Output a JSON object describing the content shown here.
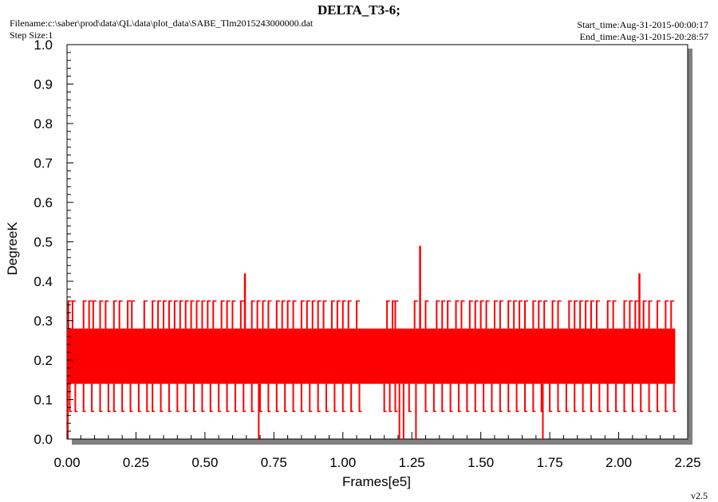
{
  "header": {
    "title": "DELTA_T3-6;",
    "filename": "Filename:c:\\saber\\prod\\data\\QL\\data\\plot_data\\SABE_Tlm2015243000000.dat",
    "step_size": "Step Size:1",
    "start_time": "Start_time:Aug-31-2015-00:00:17",
    "end_time": "End_time:Aug-31-2015-20:28:57"
  },
  "footer": {
    "version": "v2.5"
  },
  "colors": {
    "series": "#ff0000",
    "axis": "#000000",
    "shadow": "#808080"
  },
  "chart_data": {
    "type": "line",
    "title": "DELTA_T3-6;",
    "xlabel": "Frames[e5]",
    "ylabel": "DegreeK",
    "xlim": [
      0.0,
      2.25
    ],
    "ylim": [
      0.0,
      1.0
    ],
    "x_ticks": [
      "0.00",
      "0.25",
      "0.50",
      "0.75",
      "1.00",
      "1.25",
      "1.50",
      "1.75",
      "2.00",
      "2.25"
    ],
    "y_ticks": [
      "0.0",
      "0.1",
      "0.2",
      "0.3",
      "0.4",
      "0.5",
      "0.6",
      "0.7",
      "0.8",
      "0.9",
      "1.0"
    ],
    "x_tick_values": [
      0.0,
      0.25,
      0.5,
      0.75,
      1.0,
      1.25,
      1.5,
      1.75,
      2.0,
      2.25
    ],
    "y_tick_values": [
      0.0,
      0.1,
      0.2,
      0.3,
      0.4,
      0.5,
      0.6,
      0.7,
      0.8,
      0.9,
      1.0
    ],
    "grid": false,
    "series": [
      {
        "color": "#ff0000",
        "band": {
          "x_start": 0.0,
          "x_end": 2.205,
          "low": 0.14,
          "high": 0.28
        },
        "spikes_up_035": [
          0.005,
          0.02,
          0.06,
          0.08,
          0.095,
          0.12,
          0.14,
          0.17,
          0.19,
          0.22,
          0.235,
          0.28,
          0.31,
          0.33,
          0.35,
          0.37,
          0.39,
          0.41,
          0.43,
          0.45,
          0.47,
          0.49,
          0.51,
          0.53,
          0.56,
          0.58,
          0.6,
          0.63,
          0.67,
          0.69,
          0.71,
          0.73,
          0.76,
          0.78,
          0.8,
          0.82,
          0.85,
          0.87,
          0.89,
          0.91,
          0.93,
          0.96,
          0.98,
          1.0,
          1.02,
          1.05,
          1.16,
          1.18,
          1.19,
          1.26,
          1.3,
          1.34,
          1.36,
          1.38,
          1.41,
          1.43,
          1.46,
          1.48,
          1.5,
          1.52,
          1.55,
          1.57,
          1.6,
          1.62,
          1.64,
          1.66,
          1.69,
          1.71,
          1.73,
          1.76,
          1.78,
          1.82,
          1.84,
          1.86,
          1.88,
          1.9,
          1.92,
          1.96,
          1.98,
          2.02,
          2.04,
          2.06,
          2.09,
          2.11,
          2.14,
          2.17,
          2.19
        ],
        "spikes_down_007": [
          0.01,
          0.03,
          0.06,
          0.09,
          0.12,
          0.15,
          0.17,
          0.2,
          0.23,
          0.26,
          0.29,
          0.31,
          0.34,
          0.37,
          0.4,
          0.43,
          0.46,
          0.49,
          0.52,
          0.55,
          0.58,
          0.61,
          0.64,
          0.67,
          0.7,
          0.73,
          0.76,
          0.79,
          0.82,
          0.85,
          0.88,
          0.91,
          0.94,
          0.97,
          1.0,
          1.03,
          1.06,
          1.15,
          1.17,
          1.19,
          1.24,
          1.3,
          1.33,
          1.36,
          1.39,
          1.42,
          1.45,
          1.48,
          1.51,
          1.54,
          1.57,
          1.6,
          1.63,
          1.66,
          1.69,
          1.72,
          1.75,
          1.78,
          1.81,
          1.84,
          1.87,
          1.9,
          1.93,
          1.96,
          1.99,
          2.02,
          2.05,
          2.08,
          2.11,
          2.14,
          2.17,
          2.2
        ],
        "peaks": [
          {
            "x": 0.645,
            "y": 0.42
          },
          {
            "x": 1.28,
            "y": 0.49
          },
          {
            "x": 2.075,
            "y": 0.42
          }
        ],
        "dips": [
          {
            "x": 0.003,
            "y": 0.0
          },
          {
            "x": 0.695,
            "y": 0.0
          },
          {
            "x": 1.205,
            "y": 0.0
          },
          {
            "x": 1.22,
            "y": 0.0
          },
          {
            "x": 1.265,
            "y": 0.0
          },
          {
            "x": 1.725,
            "y": 0.0
          }
        ]
      }
    ]
  }
}
